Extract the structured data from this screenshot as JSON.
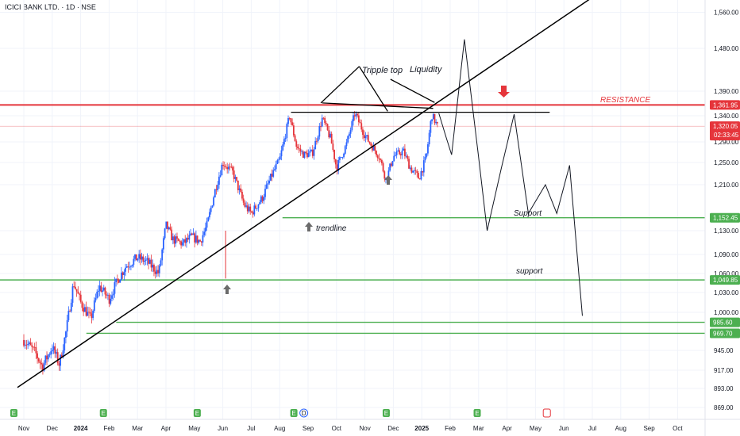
{
  "header": {
    "title": "ICICI BANK LTD. · 1D · NSE"
  },
  "colors": {
    "bull": "#2962ff",
    "bear": "#e5353b",
    "resistance": "#e5353b",
    "support": "#4caf50",
    "trendline": "#000000",
    "projection": "#131722",
    "marker": "#6b6b6b"
  },
  "chart_data": {
    "type": "candlestick",
    "ylim": [
      858,
      1585
    ],
    "x_ticks": [
      "Nov",
      "Dec",
      "2024",
      "Feb",
      "Mar",
      "Apr",
      "May",
      "Jun",
      "Jul",
      "Aug",
      "Sep",
      "Oct",
      "Nov",
      "Dec",
      "2025",
      "Feb",
      "Mar",
      "Apr",
      "May",
      "Jun",
      "Jul",
      "Aug",
      "Sep",
      "Oct"
    ],
    "y_ticks": [
      1560,
      1480,
      1390,
      1340,
      1290,
      1250,
      1210,
      1130,
      1090,
      1060,
      1030,
      1000,
      945,
      917,
      893,
      869
    ],
    "y_tick_labels": [
      "1,560.00",
      "1,480.00",
      "1,390.00",
      "1,340.00",
      "1,290.00",
      "1,250.00",
      "1,210.00",
      "1,130.00",
      "1,090.00",
      "1,060.00",
      "1,030.00",
      "1,000.00",
      "945.00",
      "917.00",
      "893.00",
      "869.00"
    ],
    "price_path": [
      {
        "m": 0.0,
        "p": 960
      },
      {
        "m": 0.4,
        "p": 942
      },
      {
        "m": 0.65,
        "p": 922
      },
      {
        "m": 1.0,
        "p": 950
      },
      {
        "m": 1.25,
        "p": 925
      },
      {
        "m": 1.5,
        "p": 975
      },
      {
        "m": 1.75,
        "p": 1045
      },
      {
        "m": 2.0,
        "p": 1015
      },
      {
        "m": 2.35,
        "p": 990
      },
      {
        "m": 2.65,
        "p": 1040
      },
      {
        "m": 3.0,
        "p": 1020
      },
      {
        "m": 3.3,
        "p": 1050
      },
      {
        "m": 3.6,
        "p": 1072
      },
      {
        "m": 4.0,
        "p": 1085
      },
      {
        "m": 4.35,
        "p": 1078
      },
      {
        "m": 4.75,
        "p": 1060
      },
      {
        "m": 5.0,
        "p": 1140
      },
      {
        "m": 5.25,
        "p": 1115
      },
      {
        "m": 5.6,
        "p": 1108
      },
      {
        "m": 5.9,
        "p": 1120
      },
      {
        "m": 6.2,
        "p": 1112
      },
      {
        "m": 6.45,
        "p": 1140
      },
      {
        "m": 6.7,
        "p": 1195
      },
      {
        "m": 7.0,
        "p": 1250
      },
      {
        "m": 7.35,
        "p": 1232
      },
      {
        "m": 7.75,
        "p": 1175
      },
      {
        "m": 8.0,
        "p": 1160
      },
      {
        "m": 8.4,
        "p": 1188
      },
      {
        "m": 8.75,
        "p": 1230
      },
      {
        "m": 9.0,
        "p": 1255
      },
      {
        "m": 9.35,
        "p": 1340
      },
      {
        "m": 9.6,
        "p": 1280
      },
      {
        "m": 9.85,
        "p": 1265
      },
      {
        "m": 10.15,
        "p": 1268
      },
      {
        "m": 10.5,
        "p": 1335
      },
      {
        "m": 10.8,
        "p": 1295
      },
      {
        "m": 11.0,
        "p": 1240
      },
      {
        "m": 11.35,
        "p": 1285
      },
      {
        "m": 11.65,
        "p": 1345
      },
      {
        "m": 12.0,
        "p": 1302
      },
      {
        "m": 12.25,
        "p": 1282
      },
      {
        "m": 12.5,
        "p": 1262
      },
      {
        "m": 12.75,
        "p": 1218
      },
      {
        "m": 13.0,
        "p": 1262
      },
      {
        "m": 13.35,
        "p": 1272
      },
      {
        "m": 13.6,
        "p": 1240
      },
      {
        "m": 13.9,
        "p": 1222
      },
      {
        "m": 14.15,
        "p": 1258
      },
      {
        "m": 14.35,
        "p": 1342
      },
      {
        "m": 14.55,
        "p": 1320
      }
    ],
    "levels": [
      {
        "name": "resistance",
        "value": 1361.95,
        "label": "1,361.95"
      },
      {
        "name": "support",
        "value": 1152.45,
        "label": "1,152.45"
      },
      {
        "name": "support-2",
        "value": 1049.85,
        "label": "1,049.85"
      },
      {
        "name": "support-3",
        "value": 985.6,
        "label": "985.60"
      },
      {
        "name": "support-4",
        "value": 969.7,
        "label": "969.70"
      }
    ],
    "last_price": {
      "value": 1320.05,
      "label": "1,320.05",
      "countdown": "02:33:45"
    },
    "trendline": [
      {
        "m": 0.0,
        "p": 900
      },
      {
        "m": 14.5,
        "p": 1365
      }
    ],
    "liquidity_line": [
      {
        "m": 10.5,
        "p": 1366
      },
      {
        "m": 14.4,
        "p": 1355
      }
    ],
    "neckline": [
      {
        "m": 9.4,
        "p": 1347
      },
      {
        "m": 18.5,
        "p": 1347
      }
    ],
    "tripple_top_lines": [
      {
        "from": {
          "m": 11.8,
          "p": 1442
        },
        "to": {
          "m": 10.45,
          "p": 1366
        }
      },
      {
        "from": {
          "m": 11.8,
          "p": 1442
        },
        "to": {
          "m": 12.8,
          "p": 1349
        }
      }
    ],
    "liquidity_apex": {
      "from": {
        "m": 12.9,
        "p": 1415
      },
      "to": {
        "m": 14.45,
        "p": 1367
      }
    },
    "projection_path": [
      {
        "m": 14.6,
        "p": 1345
      },
      {
        "m": 14.85,
        "p": 1300
      },
      {
        "m": 15.05,
        "p": 1265
      },
      {
        "m": 15.5,
        "p": 1500
      },
      {
        "m": 16.0,
        "p": 1260
      },
      {
        "m": 16.3,
        "p": 1130
      },
      {
        "m": 16.8,
        "p": 1240
      },
      {
        "m": 17.25,
        "p": 1343
      },
      {
        "m": 17.75,
        "p": 1160
      },
      {
        "m": 18.35,
        "p": 1210
      },
      {
        "m": 18.75,
        "p": 1160
      },
      {
        "m": 19.2,
        "p": 1245
      },
      {
        "m": 19.65,
        "p": 995
      }
    ],
    "annotations": {
      "tripple_top": "Tripple top",
      "liquidity": "Liquidity",
      "resistance": "RESISTANCE",
      "support_upper": "Support",
      "support_lower": "support",
      "trendline": "trendline"
    },
    "event_markers": {
      "earnings": [
        "E",
        "E",
        "E",
        "E",
        "E",
        "E",
        "E"
      ],
      "dividend": "D"
    }
  }
}
